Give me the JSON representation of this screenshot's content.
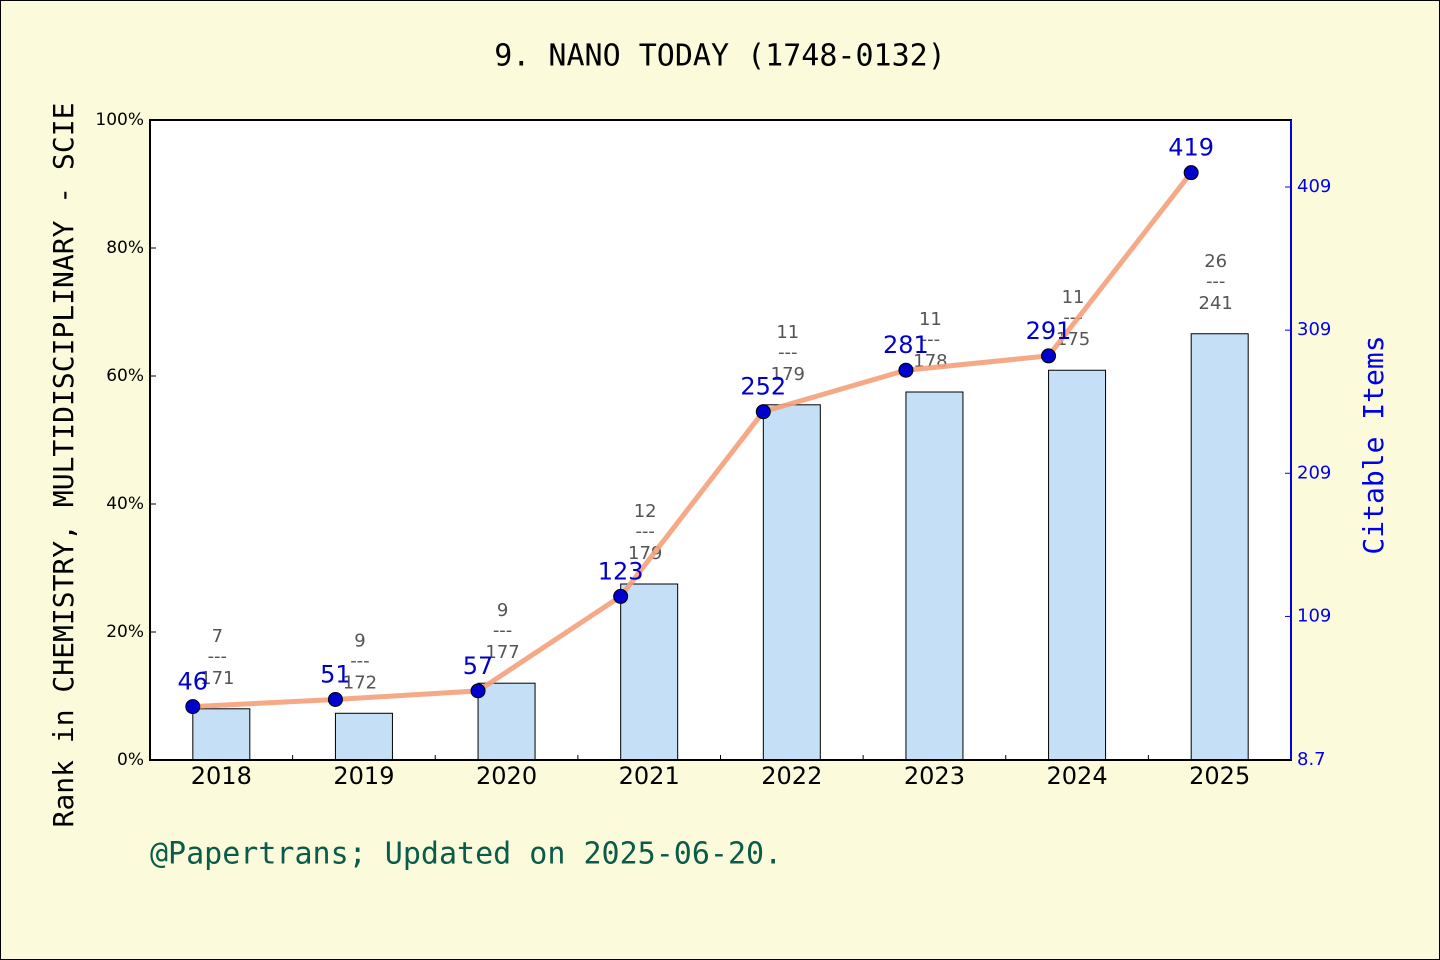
{
  "chart_data": {
    "type": "bar-line",
    "title": "9. NANO TODAY (1748-0132)",
    "y_label": "Rank in CHEMISTRY, MULTIDISCIPLINARY - SCIE",
    "y2_label": "Citable Items",
    "footer": "@Papertrans; Updated on 2025-06-20.",
    "categories": [
      "2018",
      "2019",
      "2020",
      "2021",
      "2022",
      "2023",
      "2024",
      "2025"
    ],
    "series": [
      {
        "name": "Rank percentile",
        "color": "#c5dff6",
        "values": [
          8.0,
          7.3,
          12.0,
          27.5,
          55.5,
          57.5,
          60.9,
          66.6
        ]
      },
      {
        "name": "Citable Items",
        "color": "#f4a07a",
        "axis": "y2",
        "values": [
          46,
          51,
          57,
          123,
          252,
          281,
          291,
          419
        ]
      }
    ],
    "rank_labels": [
      {
        "rank": "7",
        "total": "171"
      },
      {
        "rank": "9",
        "total": "172"
      },
      {
        "rank": "9",
        "total": "177"
      },
      {
        "rank": "12",
        "total": "179"
      },
      {
        "rank": "11",
        "total": "179"
      },
      {
        "rank": "11",
        "total": "178"
      },
      {
        "rank": "11",
        "total": "175"
      },
      {
        "rank": "26",
        "total": "241"
      }
    ],
    "rank_separator": "---",
    "ylim": [
      0,
      100
    ],
    "yticks": [
      {
        "value": 0,
        "label": "0%"
      },
      {
        "value": 20,
        "label": "20%"
      },
      {
        "value": 40,
        "label": "40%"
      },
      {
        "value": 60,
        "label": "60%"
      },
      {
        "value": 80,
        "label": "80%"
      },
      {
        "value": 100,
        "label": "100%"
      }
    ],
    "y2lim": [
      8.7,
      455.8
    ],
    "y2ticks": [
      8.7,
      109,
      209,
      309,
      409
    ],
    "y2_color": "#0000ee",
    "point_color": "#0000cc"
  }
}
